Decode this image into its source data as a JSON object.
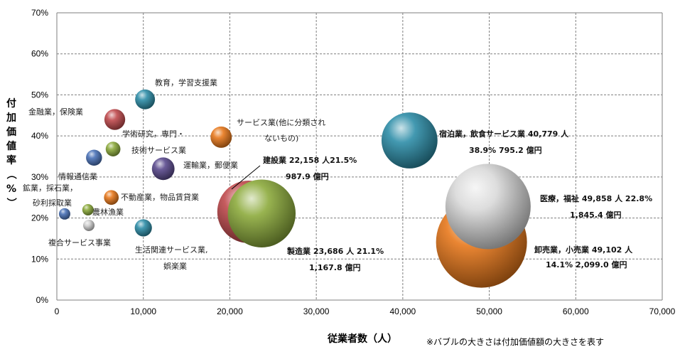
{
  "chart_data": {
    "type": "bubble",
    "xlabel": "従業者数（人）",
    "ylabel": "付加価値率（%）",
    "xlim": [
      0,
      70000
    ],
    "ylim": [
      0,
      70
    ],
    "x_ticks": [
      "0",
      "10,000",
      "20,000",
      "30,000",
      "40,000",
      "50,000",
      "60,000",
      "70,000"
    ],
    "y_ticks": [
      "0%",
      "10%",
      "20%",
      "30%",
      "40%",
      "50%",
      "60%",
      "70%"
    ],
    "grid": true,
    "note": "※バブルの大きさは付加価値額の大きさを表す",
    "series": [
      {
        "name": "鉱業，採石業，砂利採取業",
        "x": 900,
        "y": 21.0,
        "size": 12,
        "color": "#4a72b8",
        "label_lines": [
          "鉱業，採石業，",
          "砂利採取業"
        ]
      },
      {
        "name": "複合サービス事業",
        "x": 3700,
        "y": 18.2,
        "size": 25,
        "color": "#cfcfcf",
        "label_lines": [
          "複合サービス事業"
        ]
      },
      {
        "name": "農林漁業",
        "x": 3600,
        "y": 22.0,
        "size": 20,
        "color": "#8caa3c",
        "label_lines": [
          "農林漁業"
        ]
      },
      {
        "name": "情報通信業",
        "x": 4300,
        "y": 34.7,
        "size": 65,
        "color": "#4a72b8",
        "label_lines": [
          "情報通信業"
        ]
      },
      {
        "name": "金融業，保険業",
        "x": 6700,
        "y": 44.0,
        "size": 110,
        "color": "#c04a4d",
        "label_lines": [
          "金融業，保険業"
        ]
      },
      {
        "name": "学術研究，専門・技術サービス業",
        "x": 6500,
        "y": 36.8,
        "size": 55,
        "color": "#8caa3c",
        "label_lines": [
          "学術研究，専門・",
          "技術サービス業"
        ]
      },
      {
        "name": "不動産業，物品賃貸業",
        "x": 6300,
        "y": 25.0,
        "size": 55,
        "color": "#e8791c",
        "label_lines": [
          "不動産業，物品賃貸業"
        ]
      },
      {
        "name": "教育，学習支援業",
        "x": 10200,
        "y": 48.9,
        "size": 100,
        "color": "#2e8ea8",
        "label_lines": [
          "教育，学習支援業"
        ]
      },
      {
        "name": "生活関連サービス業，娯楽業",
        "x": 10000,
        "y": 17.6,
        "size": 75,
        "color": "#2e8ea8",
        "label_lines": [
          "生活関連サービス業,",
          "娯楽業"
        ]
      },
      {
        "name": "運輸業，郵便業",
        "x": 12300,
        "y": 32.0,
        "size": 130,
        "color": "#5b4a8e",
        "label_lines": [
          "運輸業，郵便業"
        ]
      },
      {
        "name": "サービス業(他に分類されないもの)",
        "x": 19000,
        "y": 39.7,
        "size": 115,
        "color": "#e8791c",
        "label_lines": [
          "サービス業(他に分類され",
          "ないもの)"
        ]
      },
      {
        "name": "建設業",
        "x": 22158,
        "y": 21.5,
        "size": 987.9,
        "color": "#c04a4d",
        "label_lines": [
          "建設業 22,158 人21.5%",
          "987.9 億円"
        ],
        "bold": true
      },
      {
        "name": "製造業",
        "x": 23686,
        "y": 21.1,
        "size": 1167.8,
        "color": "#8caa3c",
        "label_lines": [
          "製造業 23,686 人 21.1%",
          "1,167.8 億円"
        ],
        "bold": true
      },
      {
        "name": "宿泊業，飲食サービス業",
        "x": 40779,
        "y": 38.9,
        "size": 795.2,
        "color": "#2e8ea8",
        "label_lines": [
          "宿泊業，飲食サービス業 40,779 人",
          "38.9% 795.2 億円"
        ],
        "bold": true
      },
      {
        "name": "卸売業，小売業",
        "x": 49102,
        "y": 14.1,
        "size": 2099.0,
        "color": "#e8791c",
        "label_lines": [
          "卸売業，小売業 49,102 人",
          "14.1% 2,099.0 億円"
        ],
        "bold": true
      },
      {
        "name": "医療，福祉",
        "x": 49858,
        "y": 22.8,
        "size": 1845.4,
        "color": "#d9d9d9",
        "label_lines": [
          "医療，福祉 49,858 人 22.8%",
          "1,845.4 億円"
        ],
        "bold": true
      }
    ]
  }
}
